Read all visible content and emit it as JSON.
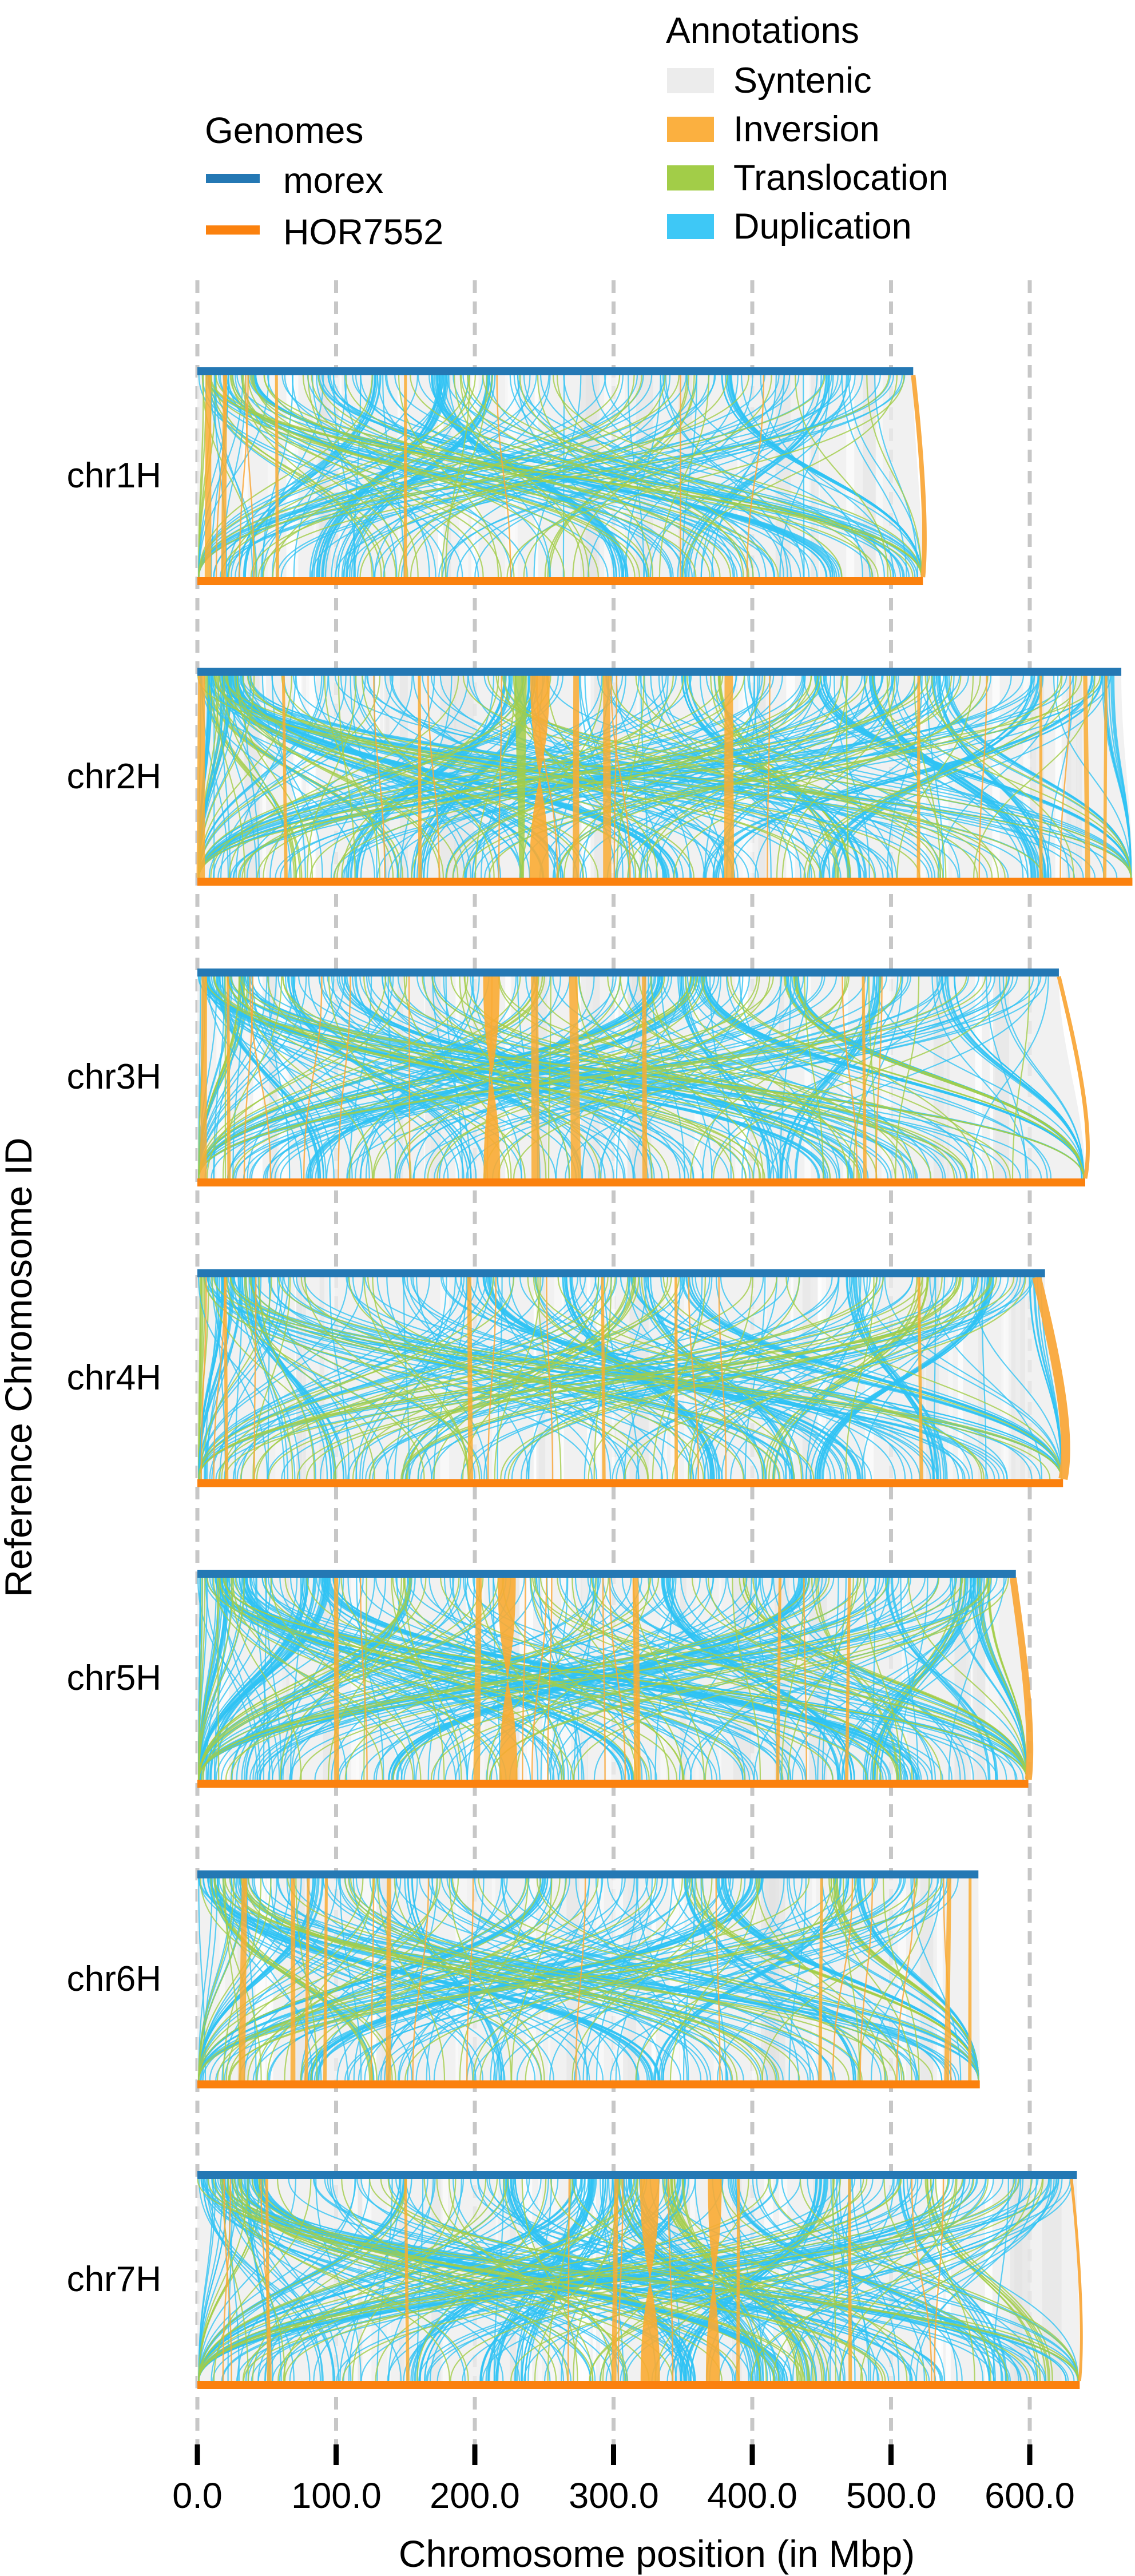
{
  "legend_titles": {
    "genomes": "Genomes",
    "annotations": "Annotations"
  },
  "chart_data": {
    "type": "synteny",
    "title": "",
    "xlabel": "Chromosome position (in Mbp)",
    "ylabel": "Reference Chromosome ID",
    "unit": "Mbp",
    "x_ticks": [
      0,
      100,
      200,
      300,
      400,
      500,
      600
    ],
    "x_tick_labels": [
      "0.0",
      "100.0",
      "200.0",
      "300.0",
      "400.0",
      "500.0",
      "600.0"
    ],
    "grid": "dashed-vertical",
    "genomes": [
      {
        "name": "morex",
        "color": "#2478b4"
      },
      {
        "name": "HOR7552",
        "color": "#fb810e"
      }
    ],
    "annotations": [
      {
        "label": "Syntenic",
        "color": "#ececec"
      },
      {
        "label": "Inversion",
        "color": "#fbb040"
      },
      {
        "label": "Translocation",
        "color": "#a2cd48"
      },
      {
        "label": "Duplication",
        "color": "#3ec8f6"
      }
    ],
    "chromosomes": [
      {
        "id": "chr1H",
        "morex_length_mbp": 516,
        "hor7552_length_mbp": 523,
        "seed": 101,
        "dup_curves": 130,
        "trans_curves": 55,
        "inv_lines": 6,
        "inversions": [
          {
            "pos": 8,
            "w": 4
          },
          {
            "pos": 20,
            "w": 3
          },
          {
            "pos": 57,
            "w": 2
          },
          {
            "pos": 150,
            "w": 2
          }
        ],
        "edge_inversion": {
          "from": 516,
          "to": 523,
          "w": 8
        },
        "trans_bands": []
      },
      {
        "id": "chr2H",
        "morex_length_mbp": 666,
        "hor7552_length_mbp": 674,
        "seed": 202,
        "dup_curves": 200,
        "trans_curves": 75,
        "inv_lines": 9,
        "inversions": [
          {
            "pos": 3,
            "w": 5
          },
          {
            "pos": 62,
            "w": 2
          },
          {
            "pos": 160,
            "w": 2
          },
          {
            "pos": 247,
            "w": 14
          },
          {
            "pos": 273,
            "w": 4
          },
          {
            "pos": 295,
            "w": 5
          },
          {
            "pos": 383,
            "w": 6
          },
          {
            "pos": 520,
            "w": 2
          },
          {
            "pos": 608,
            "w": 2
          },
          {
            "pos": 640,
            "w": 3
          },
          {
            "pos": 655,
            "w": 2
          }
        ],
        "edge_inversion": null,
        "trans_bands": [
          {
            "pos": 233,
            "w": 9
          }
        ]
      },
      {
        "id": "chr3H",
        "morex_length_mbp": 621,
        "hor7552_length_mbp": 640,
        "seed": 303,
        "dup_curves": 170,
        "trans_curves": 65,
        "inv_lines": 8,
        "inversions": [
          {
            "pos": 5,
            "w": 4
          },
          {
            "pos": 22,
            "w": 2
          },
          {
            "pos": 212,
            "w": 12
          },
          {
            "pos": 243,
            "w": 5
          },
          {
            "pos": 271,
            "w": 6
          },
          {
            "pos": 322,
            "w": 3
          },
          {
            "pos": 480,
            "w": 2
          }
        ],
        "edge_inversion": {
          "from": 621,
          "to": 640,
          "w": 7
        },
        "trans_bands": []
      },
      {
        "id": "chr4H",
        "morex_length_mbp": 611,
        "hor7552_length_mbp": 624,
        "seed": 404,
        "dup_curves": 160,
        "trans_curves": 60,
        "inv_lines": 7,
        "inversions": [
          {
            "pos": 20,
            "w": 2
          },
          {
            "pos": 196,
            "w": 3
          },
          {
            "pos": 292,
            "w": 2
          },
          {
            "pos": 345,
            "w": 2
          },
          {
            "pos": 520,
            "w": 2
          }
        ],
        "edge_inversion": {
          "from": 605,
          "to": 624,
          "w": 16
        },
        "trans_bands": []
      },
      {
        "id": "chr5H",
        "morex_length_mbp": 590,
        "hor7552_length_mbp": 599,
        "seed": 505,
        "dup_curves": 195,
        "trans_curves": 70,
        "inv_lines": 8,
        "inversions": [
          {
            "pos": 100,
            "w": 3
          },
          {
            "pos": 203,
            "w": 4
          },
          {
            "pos": 223,
            "w": 13
          },
          {
            "pos": 316,
            "w": 4
          },
          {
            "pos": 420,
            "w": 2
          },
          {
            "pos": 470,
            "w": 2
          }
        ],
        "edge_inversion": {
          "from": 588,
          "to": 599,
          "w": 12
        },
        "trans_bands": []
      },
      {
        "id": "chr6H",
        "morex_length_mbp": 563,
        "hor7552_length_mbp": 564,
        "seed": 606,
        "dup_curves": 150,
        "trans_curves": 60,
        "inv_lines": 9,
        "inversions": [
          {
            "pos": 34,
            "w": 4
          },
          {
            "pos": 69,
            "w": 3
          },
          {
            "pos": 80,
            "w": 2
          },
          {
            "pos": 93,
            "w": 2
          },
          {
            "pos": 138,
            "w": 3
          },
          {
            "pos": 450,
            "w": 2
          },
          {
            "pos": 542,
            "w": 3
          },
          {
            "pos": 557,
            "w": 2
          }
        ],
        "edge_inversion": null,
        "trans_bands": []
      },
      {
        "id": "chr7H",
        "morex_length_mbp": 634,
        "hor7552_length_mbp": 636,
        "seed": 707,
        "dup_curves": 200,
        "trans_curves": 75,
        "inv_lines": 8,
        "inversions": [
          {
            "pos": 50,
            "w": 2
          },
          {
            "pos": 150,
            "w": 2
          },
          {
            "pos": 302,
            "w": 3
          },
          {
            "pos": 326,
            "w": 14
          },
          {
            "pos": 373,
            "w": 10
          },
          {
            "pos": 390,
            "w": 2
          },
          {
            "pos": 470,
            "w": 2
          }
        ],
        "edge_inversion": {
          "from": 630,
          "to": 636,
          "w": 5
        },
        "trans_bands": []
      }
    ],
    "style_colors": {
      "syntenic_fill": "#ededed",
      "inversion_fill": "#f9ab33",
      "translocation_stroke": "#a2cd48",
      "duplication_stroke": "#2fc3f4",
      "inversion_stroke": "#f9a83b",
      "gridline": "#c7c7c7",
      "tick": "#000000"
    }
  }
}
